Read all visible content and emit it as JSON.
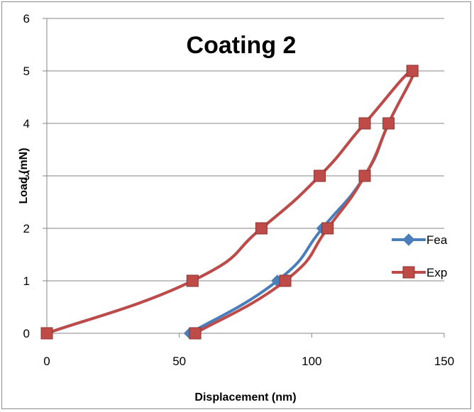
{
  "chart_data": {
    "type": "line",
    "title": "Coating 2",
    "xlabel": "Displacement (nm)",
    "ylabel": "Load (mN)",
    "xlim": [
      0,
      150
    ],
    "ylim": [
      0,
      6
    ],
    "x_ticks": [
      "0",
      "50",
      "100",
      "150"
    ],
    "y_ticks": [
      "0",
      "1",
      "2",
      "3",
      "4",
      "5",
      "6"
    ],
    "grid": "horizontal",
    "legend_position": "right",
    "series": [
      {
        "name": "Fea",
        "color": "#4a7ebb",
        "marker": "diamond",
        "points": [
          [
            0,
            0
          ],
          [
            55,
            1
          ],
          [
            81,
            2
          ],
          [
            103,
            3
          ],
          [
            120,
            4
          ],
          [
            138,
            5
          ],
          [
            129,
            4
          ],
          [
            120,
            3
          ],
          [
            104,
            2
          ],
          [
            87,
            1
          ],
          [
            54,
            0
          ]
        ]
      },
      {
        "name": "Exp",
        "color": "#be4b48",
        "marker": "square",
        "points": [
          [
            0,
            0
          ],
          [
            55,
            1
          ],
          [
            81,
            2
          ],
          [
            103,
            3
          ],
          [
            120,
            4
          ],
          [
            138,
            5
          ],
          [
            129,
            4
          ],
          [
            120,
            3
          ],
          [
            106,
            2
          ],
          [
            90,
            1
          ],
          [
            56,
            0
          ]
        ]
      }
    ]
  }
}
